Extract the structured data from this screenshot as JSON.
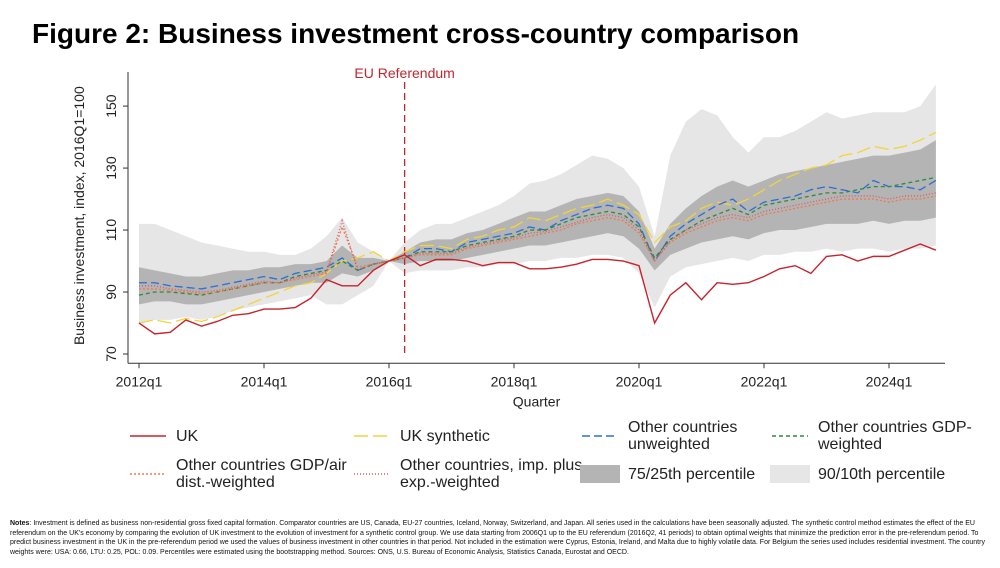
{
  "chart_data": {
    "type": "line",
    "title": "Figure 2: Business investment cross-country comparison",
    "y_label": "Business investment, index, 2016Q1=100",
    "x_label": "Quarter",
    "categories": [
      "2012q1",
      null,
      null,
      null,
      null,
      null,
      null,
      null,
      "2014q1",
      null,
      null,
      null,
      null,
      null,
      null,
      null,
      "2016q1",
      null,
      null,
      null,
      null,
      null,
      null,
      null,
      "2018q1",
      null,
      null,
      null,
      null,
      null,
      null,
      null,
      "2020q1",
      null,
      null,
      null,
      null,
      null,
      null,
      null,
      "2022q1",
      null,
      null,
      null,
      null,
      null,
      null,
      null,
      "2024q1",
      null,
      null,
      null
    ],
    "ylim": [
      67,
      161
    ],
    "yticks": [
      70,
      90,
      110,
      130,
      150
    ],
    "referendum": {
      "label": "EU Referendum",
      "category_index": 17,
      "color": "#c0272d"
    },
    "bands": [
      {
        "name": "90/10th percentile",
        "color": "#e6e6e6",
        "low": [
          80,
          81,
          81,
          82,
          81,
          82,
          84,
          85,
          86,
          87,
          88,
          89,
          86,
          86,
          89,
          92,
          100,
          96,
          97,
          97,
          97,
          98,
          98,
          99,
          99,
          100,
          100,
          101,
          101,
          102,
          102,
          101,
          96,
          85,
          95,
          98,
          99,
          100,
          101,
          100,
          102,
          102,
          103,
          103,
          104,
          103,
          104,
          104,
          103,
          104,
          104,
          105
        ],
        "high": [
          112,
          112,
          110,
          108,
          106,
          105,
          104,
          103,
          103,
          102,
          102,
          104,
          108,
          114,
          106,
          103,
          100,
          106,
          110,
          112,
          112,
          114,
          116,
          118,
          121,
          125,
          126,
          128,
          131,
          134,
          133,
          130,
          124,
          108,
          134,
          145,
          149,
          147,
          140,
          135,
          140,
          140,
          142,
          145,
          148,
          146,
          147,
          148,
          148,
          148,
          150,
          157
        ]
      },
      {
        "name": "75/25th percentile",
        "color": "#b4b4b4",
        "low": [
          86,
          87,
          87,
          86,
          86,
          87,
          88,
          89,
          90,
          91,
          92,
          93,
          93,
          96,
          95,
          97,
          100,
          99,
          100,
          100,
          100,
          101,
          102,
          103,
          104,
          105,
          105,
          106,
          107,
          108,
          109,
          108,
          104,
          97,
          102,
          104,
          106,
          107,
          108,
          107,
          109,
          110,
          110,
          111,
          112,
          112,
          112,
          113,
          112,
          113,
          113,
          114
        ],
        "high": [
          98,
          97,
          96,
          95,
          95,
          96,
          97,
          97,
          98,
          98,
          99,
          99,
          100,
          105,
          101,
          101,
          100,
          103,
          106,
          107,
          107,
          109,
          110,
          112,
          114,
          116,
          116,
          118,
          120,
          121,
          122,
          121,
          116,
          104,
          112,
          117,
          121,
          124,
          126,
          124,
          126,
          128,
          129,
          130,
          131,
          132,
          133,
          134,
          134,
          135,
          136,
          139
        ]
      }
    ],
    "series": [
      {
        "name": "UK",
        "color": "#c8232c",
        "dash": "none",
        "width": 1.4,
        "values": [
          80,
          76.5,
          77,
          81,
          79,
          80.5,
          82.5,
          83,
          84.5,
          84.5,
          85,
          88,
          94,
          92,
          92,
          97,
          100,
          102,
          98.5,
          100.5,
          100.5,
          100,
          98.5,
          99.5,
          99.5,
          97.5,
          97.5,
          98,
          99,
          100.5,
          100.5,
          100,
          98.5,
          80,
          89,
          93,
          87.5,
          93,
          92.5,
          93,
          95,
          97.5,
          98.5,
          96,
          101.5,
          102,
          100,
          101.5,
          101.5,
          103.5,
          105.5,
          103.5
        ]
      },
      {
        "name": "UK synthetic",
        "color": "#f2d43a",
        "dash": "14 5",
        "width": 1.3,
        "values": [
          80,
          81,
          80,
          81.5,
          80.5,
          82,
          84,
          86,
          88,
          90,
          92,
          93,
          96,
          100,
          101,
          103,
          100,
          103,
          105,
          105,
          104,
          107,
          108,
          110,
          111,
          114,
          113,
          115,
          117,
          118,
          120,
          118,
          115,
          106,
          111,
          113,
          117,
          119,
          118,
          120,
          123,
          126,
          128,
          130,
          131,
          134,
          135,
          137,
          136,
          137,
          139,
          141.5
        ]
      },
      {
        "name": "Other countries unweighted",
        "color": "#2a6fd6",
        "dash": "8 4",
        "width": 1.3,
        "values": [
          93,
          93,
          92,
          91.5,
          91,
          92,
          93,
          94,
          95,
          94,
          96,
          97,
          98,
          101,
          97,
          99,
          100,
          101,
          104,
          104,
          103,
          106,
          107,
          108,
          109,
          111,
          110,
          113,
          115,
          117,
          118,
          117,
          112,
          100,
          108,
          112,
          115,
          118,
          120,
          116,
          119,
          120,
          121,
          123,
          124,
          123,
          122,
          126,
          124,
          124,
          123,
          126
        ]
      },
      {
        "name": "Other countries GDP-weighted",
        "color": "#2e8b3a",
        "dash": "4 3",
        "width": 1.3,
        "values": [
          89,
          90,
          90,
          89.5,
          89,
          90,
          91,
          92,
          93,
          93,
          95,
          96,
          97,
          100,
          97,
          99,
          100,
          101,
          103,
          103,
          103,
          105,
          106,
          107,
          108,
          110,
          110,
          112,
          114,
          115,
          116,
          115,
          111,
          101,
          107,
          110,
          113,
          115,
          117,
          115,
          118,
          119,
          120,
          121,
          122,
          122,
          123,
          124,
          124,
          125,
          126,
          127
        ]
      },
      {
        "name": "Other countries GDP/air dist.-weighted",
        "color": "#f07a4a",
        "dash": "2 2",
        "width": 1.3,
        "values": [
          91,
          91,
          90.5,
          90,
          89.5,
          90,
          91,
          92,
          93,
          93,
          94,
          95,
          96,
          111,
          98,
          99,
          100,
          101,
          102,
          102,
          102,
          104,
          105,
          106,
          107,
          108,
          109,
          110,
          112,
          113,
          114,
          113,
          109,
          100,
          106,
          109,
          111,
          113,
          114,
          113,
          115,
          116,
          117,
          118,
          119,
          120,
          120,
          120,
          119,
          120,
          120,
          121
        ]
      },
      {
        "name": "Other countries, imp. plus exp.-weighted",
        "color": "#d9596b",
        "dash": "1 2",
        "width": 1.3,
        "values": [
          92,
          92,
          91,
          90.5,
          90,
          90.5,
          91.5,
          92.5,
          93.5,
          93,
          94.5,
          95.5,
          96.5,
          113,
          97,
          99,
          100,
          101,
          102.5,
          102.5,
          102.5,
          104.5,
          105.5,
          106.5,
          107.5,
          109,
          109.5,
          111,
          112.5,
          114,
          115,
          114,
          110,
          100,
          106.5,
          110,
          112,
          114,
          115,
          114,
          116,
          117,
          118,
          119,
          120,
          121,
          121,
          121,
          120,
          121,
          121,
          122
        ]
      }
    ],
    "notes_label": "Notes",
    "notes": ": Investment is defined as business non-residential gross fixed capital formation. Comparator countries are US, Canada, EU-27 countries, Iceland, Norway, Switzerland, and Japan. All series used in the calculations have been seasonally adjusted. The synthetic control method estimates the effect of the EU referendum on the UK's economy by comparing the evolution of UK investment to the evolution of investment for a synthetic control group. We use data starting from 2006Q1 up to the EU referendum (2016Q2, 41 periods) to obtain optimal weights that minimize the prediction error in the pre-referendum period. To predict business investment in the UK in the pre-referendum period we used the values of business investment in other countries in that period. Not included in the estimation were Cyprus, Estonia, Ireland, and Malta due to highly volatile data. For Belgium the series used includes residential investment. The country weights were: USA: 0.66, LTU: 0.25, POL: 0.09. Percentiles were estimated using the bootstrapping method. Sources: ONS, U.S. Bureau of Economic Analysis, Statistics Canada, Eurostat and OECD."
  }
}
